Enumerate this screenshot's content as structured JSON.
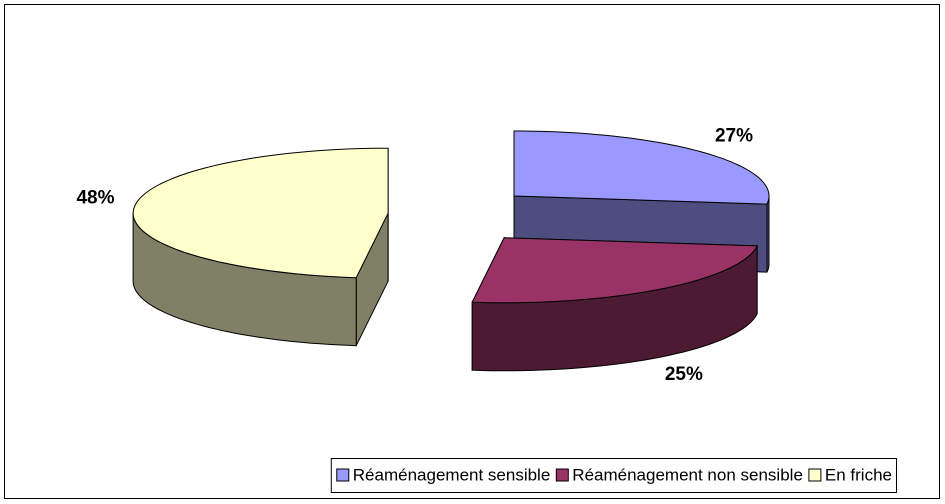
{
  "chart_data": {
    "type": "pie3d",
    "categories": [
      "Réaménagement sensible",
      "Réaménagement non sensible",
      "En friche"
    ],
    "values": [
      27,
      25,
      48
    ],
    "value_labels": [
      "27%",
      "25%",
      "48%"
    ],
    "colors": [
      "#9999ff",
      "#993366",
      "#ffffcc"
    ],
    "legend": "bottom"
  }
}
